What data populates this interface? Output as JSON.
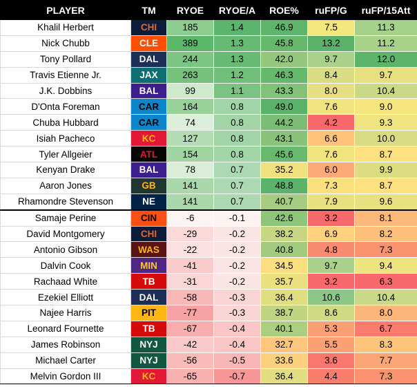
{
  "headers": [
    "PLAYER",
    "TM",
    "RYOE",
    "RYOE/A",
    "ROE%",
    "ruFP/G",
    "ruFP/15Att"
  ],
  "teams": {
    "CHI": {
      "bg": "#0b1c3a",
      "fg": "#e5642b"
    },
    "CLE": {
      "bg": "#ff4e00",
      "fg": "#ffffff"
    },
    "DAL": {
      "bg": "#1d2f56",
      "fg": "#ffffff"
    },
    "JAX": {
      "bg": "#0e6f73",
      "fg": "#ffffff"
    },
    "BAL": {
      "bg": "#3c1e8c",
      "fg": "#ffffff"
    },
    "CAR": {
      "bg": "#0c85ca",
      "fg": "#000000"
    },
    "KC": {
      "bg": "#e31837",
      "fg": "#ffb81c"
    },
    "ATL": {
      "bg": "#050505",
      "fg": "#e31837"
    },
    "GB": {
      "bg": "#203731",
      "fg": "#ffb612"
    },
    "NE": {
      "bg": "#002244",
      "fg": "#ffffff"
    },
    "CIN": {
      "bg": "#fb4f14",
      "fg": "#000000"
    },
    "WAS": {
      "bg": "#5a1414",
      "fg": "#ffb612"
    },
    "MIN": {
      "bg": "#4f2683",
      "fg": "#ffc62f"
    },
    "TB": {
      "bg": "#d50a0a",
      "fg": "#ffffff"
    },
    "PIT": {
      "bg": "#ffb612",
      "fg": "#000000"
    },
    "NYJ": {
      "bg": "#125740",
      "fg": "#ffffff"
    }
  },
  "rows": [
    {
      "player": "Khalil Herbert",
      "tm": "CHI",
      "ryoe": "185",
      "ryoe_a": "1.4",
      "roe": "46.9",
      "rufp_g": "7.5",
      "rufp_15": "11.3",
      "bg": [
        "#8dcd8f",
        "#5cb56f",
        "#5fb56b",
        "#f4e67e",
        "#a6d18a"
      ]
    },
    {
      "player": "Nick Chubb",
      "tm": "CLE",
      "ryoe": "389",
      "ryoe_a": "1.3",
      "roe": "45.8",
      "rufp_g": "13.2",
      "rufp_15": "11.2",
      "bg": [
        "#5bb86a",
        "#67ba73",
        "#66b86c",
        "#5ab26a",
        "#a8d18a"
      ]
    },
    {
      "player": "Tony Pollard",
      "tm": "DAL",
      "ryoe": "244",
      "ryoe_a": "1.3",
      "roe": "42.0",
      "rufp_g": "9.7",
      "rufp_15": "12.0",
      "bg": [
        "#7cc583",
        "#67ba73",
        "#94c77d",
        "#a9d18a",
        "#5cb56b"
      ]
    },
    {
      "player": "Travis Etienne Jr.",
      "tm": "JAX",
      "ryoe": "263",
      "ryoe_a": "1.2",
      "roe": "46.3",
      "rufp_g": "8.4",
      "rufp_15": "9.7",
      "bg": [
        "#76c27d",
        "#72bf7b",
        "#66b86c",
        "#d8dc83",
        "#e6e081"
      ]
    },
    {
      "player": "J.K. Dobbins",
      "tm": "BAL",
      "ryoe": "99",
      "ryoe_a": "1.1",
      "roe": "43.3",
      "rufp_g": "8.0",
      "rufp_15": "10.4",
      "bg": [
        "#cfe9cd",
        "#7cc383",
        "#84c178",
        "#e6df82",
        "#c9d987"
      ]
    },
    {
      "player": "D'Onta Foreman",
      "tm": "CAR",
      "ryoe": "164",
      "ryoe_a": "0.8",
      "roe": "49.0",
      "rufp_g": "7.6",
      "rufp_15": "9.0",
      "bg": [
        "#98d199",
        "#a1d5a7",
        "#5ab26a",
        "#f1e47f",
        "#f5e57e"
      ]
    },
    {
      "player": "Chuba Hubbard",
      "tm": "CAR",
      "ryoe": "74",
      "ryoe_a": "0.8",
      "roe": "44.2",
      "rufp_g": "4.2",
      "rufp_15": "9.3",
      "bg": [
        "#dcefda",
        "#a1d5a7",
        "#7bbd74",
        "#f8696b",
        "#efe47f"
      ]
    },
    {
      "player": "Isiah Pacheco",
      "tm": "KC",
      "ryoe": "127",
      "ryoe_a": "0.8",
      "roe": "43.1",
      "rufp_g": "6.6",
      "rufp_15": "10.0",
      "bg": [
        "#b4ddb4",
        "#a1d5a7",
        "#88c379",
        "#fec47b",
        "#d9dc83"
      ]
    },
    {
      "player": "Tyler Allgeier",
      "tm": "ATL",
      "ryoe": "154",
      "ryoe_a": "0.8",
      "roe": "45.6",
      "rufp_g": "7.6",
      "rufp_15": "8.7",
      "bg": [
        "#a0d4a1",
        "#a1d5a7",
        "#68b96d",
        "#f1e47f",
        "#fde07f"
      ]
    },
    {
      "player": "Kenyan Drake",
      "tm": "BAL",
      "ryoe": "78",
      "ryoe_a": "0.7",
      "roe": "35.2",
      "rufp_g": "6.0",
      "rufp_15": "9.9",
      "bg": [
        "#d9edd7",
        "#acd9b1",
        "#f1e17e",
        "#fcaa77",
        "#dcdd83"
      ]
    },
    {
      "player": "Aaron Jones",
      "tm": "GB",
      "ryoe": "141",
      "ryoe_a": "0.7",
      "roe": "48.8",
      "rufp_g": "7.3",
      "rufp_15": "8.7",
      "bg": [
        "#aad8aa",
        "#acd9b1",
        "#5bb26a",
        "#fce07f",
        "#fde07f"
      ]
    },
    {
      "player": "Rhamondre Stevenson",
      "tm": "NE",
      "ryoe": "141",
      "ryoe_a": "0.7",
      "roe": "40.7",
      "rufp_g": "7.9",
      "rufp_15": "9.6",
      "bg": [
        "#aad8aa",
        "#acd9b1",
        "#a5cc80",
        "#e9e081",
        "#e8e081"
      ]
    },
    {
      "player": "Samaje Perine",
      "tm": "CIN",
      "ryoe": "-6",
      "ryoe_a": "-0.1",
      "roe": "42.6",
      "rufp_g": "3.2",
      "rufp_15": "8.1",
      "bg": [
        "#fcf3f3",
        "#fdf2f2",
        "#8dc57b",
        "#f8696b",
        "#fdb97a"
      ]
    },
    {
      "player": "David Montgomery",
      "tm": "CHI",
      "ryoe": "-29",
      "ryoe_a": "-0.2",
      "roe": "38.2",
      "rufp_g": "6.9",
      "rufp_15": "8.2",
      "bg": [
        "#fbd9d9",
        "#fbe4e4",
        "#c8d683",
        "#fed27d",
        "#fdc07b"
      ]
    },
    {
      "player": "Antonio Gibson",
      "tm": "WAS",
      "ryoe": "-22",
      "ryoe_a": "-0.2",
      "roe": "40.8",
      "rufp_g": "4.8",
      "rufp_15": "7.3",
      "bg": [
        "#fbe1e1",
        "#fbe4e4",
        "#a3cb80",
        "#f98b70",
        "#f9926f"
      ]
    },
    {
      "player": "Dalvin Cook",
      "tm": "MIN",
      "ryoe": "-41",
      "ryoe_a": "-0.2",
      "roe": "34.5",
      "rufp_g": "9.7",
      "rufp_15": "9.4",
      "bg": [
        "#facbcb",
        "#fbe4e4",
        "#fbdf7e",
        "#a9d18a",
        "#eee47f"
      ]
    },
    {
      "player": "Rachaad White",
      "tm": "TB",
      "ryoe": "-31",
      "ryoe_a": "-0.2",
      "roe": "35.7",
      "rufp_g": "3.2",
      "rufp_15": "6.3",
      "bg": [
        "#fad6d6",
        "#fbe4e4",
        "#eae07f",
        "#f8696b",
        "#f8696b"
      ]
    },
    {
      "player": "Ezekiel Elliott",
      "tm": "DAL",
      "ryoe": "-58",
      "ryoe_a": "-0.3",
      "roe": "36.4",
      "rufp_g": "10.6",
      "rufp_15": "10.4",
      "bg": [
        "#f9b8b8",
        "#fad5d5",
        "#e0de81",
        "#8dc787",
        "#c9d987"
      ]
    },
    {
      "player": "Najee Harris",
      "tm": "PIT",
      "ryoe": "-77",
      "ryoe_a": "-0.3",
      "roe": "38.7",
      "rufp_g": "8.6",
      "rufp_15": "8.0",
      "bg": [
        "#f8a3a3",
        "#fad5d5",
        "#c1d482",
        "#d0da83",
        "#fdb679"
      ]
    },
    {
      "player": "Leonard Fournette",
      "tm": "TB",
      "ryoe": "-67",
      "ryoe_a": "-0.4",
      "roe": "40.1",
      "rufp_g": "5.3",
      "rufp_15": "6.7",
      "bg": [
        "#f8aeae",
        "#f9c5c5",
        "#acce80",
        "#faa074",
        "#f97c6d"
      ]
    },
    {
      "player": "James Robinson",
      "tm": "NYJ",
      "ryoe": "-42",
      "ryoe_a": "-0.4",
      "roe": "32.7",
      "rufp_g": "5.5",
      "rufp_15": "8.3",
      "bg": [
        "#facaca",
        "#f9c5c5",
        "#fdc67c",
        "#fba174",
        "#fdc47c"
      ]
    },
    {
      "player": "Michael Carter",
      "tm": "NYJ",
      "ryoe": "-56",
      "ryoe_a": "-0.5",
      "roe": "33.6",
      "rufp_g": "3.6",
      "rufp_15": "7.7",
      "bg": [
        "#f9baba",
        "#f8b5b5",
        "#fdd07d",
        "#f8786d",
        "#faa575"
      ]
    },
    {
      "player": "Melvin Gordon III",
      "tm": "KC",
      "ryoe": "-65",
      "ryoe_a": "-0.7",
      "roe": "36.4",
      "rufp_g": "4.4",
      "rufp_15": "7.3",
      "bg": [
        "#f8b0b0",
        "#f69696",
        "#e0de81",
        "#f97c6d",
        "#f9926f"
      ]
    }
  ]
}
